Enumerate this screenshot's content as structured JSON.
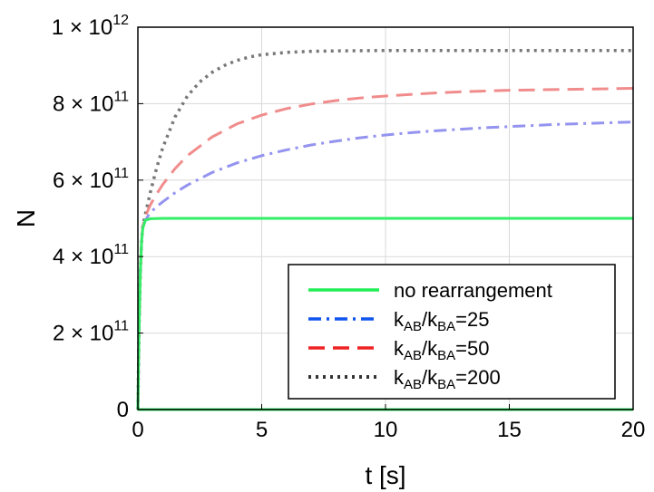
{
  "chart_data": {
    "type": "line",
    "title": "",
    "xlabel": "t [s]",
    "ylabel": "N",
    "xlim": [
      0,
      20
    ],
    "ylim": [
      0,
      1000000000000
    ],
    "grid": true,
    "legend_position": "bottom-right",
    "x_ticks": [
      {
        "value": 0,
        "label": "0"
      },
      {
        "value": 5,
        "label": "5"
      },
      {
        "value": 10,
        "label": "10"
      },
      {
        "value": 15,
        "label": "15"
      },
      {
        "value": 20,
        "label": "20"
      }
    ],
    "y_ticks": [
      {
        "value": 0,
        "mant": "0",
        "exp": ""
      },
      {
        "value": 200000000000,
        "mant": "2 × 10",
        "exp": "11"
      },
      {
        "value": 400000000000,
        "mant": "4 × 10",
        "exp": "11"
      },
      {
        "value": 600000000000,
        "mant": "6 × 10",
        "exp": "11"
      },
      {
        "value": 800000000000,
        "mant": "8 × 10",
        "exp": "11"
      },
      {
        "value": 1000000000000,
        "mant": "1 × 10",
        "exp": "12"
      }
    ],
    "series": [
      {
        "key": "no-rearrangement",
        "label_main": "no rearrangement",
        "label_sub1": "",
        "label_sub2": "",
        "label_tail": "",
        "color": "#33ee66",
        "legend_color": "#22ee55",
        "dash": "",
        "width": 3,
        "opacity": 1,
        "x": [
          0,
          0.02,
          0.05,
          0.1,
          0.15,
          0.2,
          0.3,
          0.5,
          1,
          2,
          5,
          10,
          15,
          20
        ],
        "y": [
          0,
          90000000000,
          220000000000,
          360000000000,
          440000000000,
          475000000000,
          495000000000,
          499000000000,
          500000000000,
          500000000000,
          500000000000,
          500000000000,
          500000000000,
          500000000000
        ]
      },
      {
        "key": "ratio-25",
        "label_main": "k",
        "label_sub1": "AB",
        "label_sub2": "BA",
        "label_tail": "=25",
        "color": "#8888ee",
        "legend_color": "#1155ee",
        "dash": "14,6,3,6",
        "width": 3,
        "opacity": 0.9,
        "x": [
          0,
          0.05,
          0.1,
          0.15,
          0.2,
          0.3,
          0.5,
          0.75,
          1,
          1.5,
          2,
          3,
          4,
          5,
          6,
          7,
          8,
          9,
          10,
          11,
          12,
          13,
          14,
          15,
          16,
          17,
          18,
          19,
          20
        ],
        "y": [
          0,
          220000000000,
          360000000000,
          440000000000,
          475000000000,
          495000000000,
          515000000000,
          530000000000,
          543000000000,
          567000000000,
          587000000000,
          620000000000,
          645000000000,
          664000000000,
          679000000000,
          692000000000,
          702000000000,
          711000000000,
          718000000000,
          724000000000,
          729000000000,
          733000000000,
          737000000000,
          740000000000,
          743000000000,
          746000000000,
          748000000000,
          750000000000,
          752000000000
        ]
      },
      {
        "key": "ratio-50",
        "label_main": "k",
        "label_sub1": "AB",
        "label_sub2": "BA",
        "label_tail": "=50",
        "color": "#f08080",
        "legend_color": "#ee2222",
        "dash": "18,9",
        "width": 3,
        "opacity": 0.9,
        "x": [
          0,
          0.05,
          0.1,
          0.15,
          0.2,
          0.3,
          0.5,
          0.75,
          1,
          1.5,
          2,
          3,
          4,
          5,
          6,
          7,
          8,
          9,
          10,
          11,
          12,
          13,
          14,
          15,
          16,
          17,
          18,
          19,
          20
        ],
        "y": [
          0,
          220000000000,
          360000000000,
          440000000000,
          480000000000,
          505000000000,
          535000000000,
          563000000000,
          588000000000,
          630000000000,
          664000000000,
          713000000000,
          747000000000,
          770000000000,
          787000000000,
          799000000000,
          808000000000,
          815000000000,
          820000000000,
          824000000000,
          828000000000,
          831000000000,
          833000000000,
          835000000000,
          836000000000,
          837000000000,
          838000000000,
          839000000000,
          840000000000
        ]
      },
      {
        "key": "ratio-200",
        "label_main": "k",
        "label_sub1": "AB",
        "label_sub2": "BA",
        "label_tail": "=200",
        "color": "#777777",
        "legend_color": "#333333",
        "dash": "3,5",
        "width": 3.5,
        "opacity": 1,
        "x": [
          0,
          0.05,
          0.1,
          0.15,
          0.2,
          0.3,
          0.5,
          0.75,
          1,
          1.5,
          2,
          2.5,
          3,
          3.5,
          4,
          4.5,
          5,
          6,
          7,
          8,
          10,
          12,
          15,
          20
        ],
        "y": [
          0,
          220000000000,
          360000000000,
          440000000000,
          480000000000,
          510000000000,
          567000000000,
          630000000000,
          684000000000,
          765000000000,
          820000000000,
          857000000000,
          882000000000,
          900000000000,
          913000000000,
          922000000000,
          928000000000,
          934000000000,
          937000000000,
          938000000000,
          939000000000,
          939000000000,
          939000000000,
          939000000000
        ]
      }
    ]
  }
}
